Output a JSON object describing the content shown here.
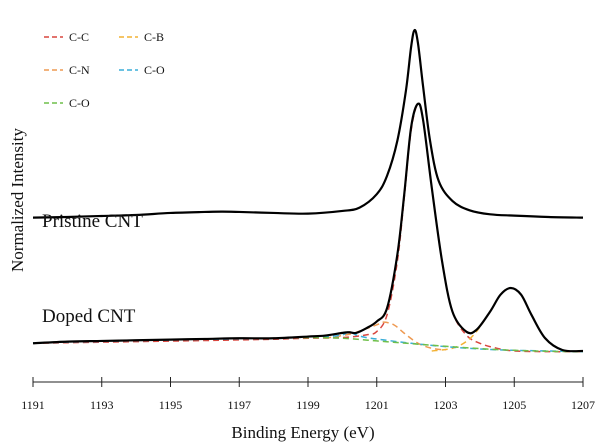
{
  "chart_data": {
    "type": "line",
    "xlabel": "Binding Energy (eV)",
    "ylabel": "Normalized Intensity",
    "xlim": [
      1191,
      1207
    ],
    "x_ticks": [
      "1191",
      "1193",
      "1195",
      "1197",
      "1199",
      "1201",
      "1203",
      "1205",
      "1207"
    ],
    "y_ticks_shown": false,
    "grid": false,
    "legend": {
      "placement": "top-left",
      "columns": 2,
      "entries": [
        {
          "name": "C-C",
          "color": "#d9473f"
        },
        {
          "name": "C-B",
          "color": "#f2b233"
        },
        {
          "name": "C-N",
          "color": "#ee9a52"
        },
        {
          "name": "C-O",
          "color": "#3aaed8"
        },
        {
          "name": "C-O",
          "color": "#6fbf4a"
        }
      ]
    },
    "annotations": [
      "Pristine CNT",
      "Doped CNT"
    ],
    "series": [
      {
        "name": "Pristine CNT",
        "style": "solid",
        "color": "#000000",
        "x": [
          1191,
          1192,
          1193,
          1194,
          1195,
          1196,
          1196.5,
          1197,
          1198,
          1199,
          1200,
          1200.5,
          1201,
          1201.3,
          1201.6,
          1201.85,
          1202.0,
          1202.1,
          1202.2,
          1202.35,
          1202.55,
          1202.8,
          1203.2,
          1203.7,
          1204.3,
          1205,
          1206,
          1207
        ],
        "y": [
          0.41,
          0.412,
          0.415,
          0.418,
          0.424,
          0.427,
          0.428,
          0.427,
          0.424,
          0.422,
          0.43,
          0.44,
          0.48,
          0.535,
          0.64,
          0.79,
          0.92,
          0.97,
          0.93,
          0.8,
          0.64,
          0.52,
          0.46,
          0.432,
          0.42,
          0.416,
          0.412,
          0.41
        ]
      },
      {
        "name": "Doped CNT",
        "style": "solid",
        "color": "#000000",
        "x": [
          1191,
          1192,
          1193,
          1194,
          1195,
          1196,
          1197,
          1198,
          1199,
          1199.5,
          1200,
          1200.2,
          1200.4,
          1200.7,
          1201,
          1201.3,
          1201.6,
          1201.8,
          1202.0,
          1202.2,
          1202.35,
          1202.6,
          1202.9,
          1203.2,
          1203.6,
          1203.9,
          1204.3,
          1204.6,
          1204.9,
          1205.2,
          1205.5,
          1205.9,
          1206.4,
          1207
        ],
        "y": [
          0.035,
          0.04,
          0.042,
          0.044,
          0.046,
          0.048,
          0.05,
          0.05,
          0.055,
          0.058,
          0.066,
          0.068,
          0.066,
          0.08,
          0.1,
          0.14,
          0.3,
          0.48,
          0.68,
          0.75,
          0.7,
          0.5,
          0.28,
          0.13,
          0.07,
          0.075,
          0.13,
          0.18,
          0.2,
          0.18,
          0.12,
          0.05,
          0.015,
          0.012
        ]
      },
      {
        "name": "C-C",
        "style": "dashed",
        "color": "#d9473f",
        "x": [
          1191,
          1197,
          1199,
          1200,
          1200.7,
          1201,
          1201.3,
          1201.6,
          1201.8,
          1202.0,
          1202.2,
          1202.35,
          1202.6,
          1202.9,
          1203.2,
          1203.6,
          1204,
          1204.5,
          1205,
          1206,
          1207
        ],
        "y": [
          0.035,
          0.045,
          0.05,
          0.052,
          0.06,
          0.07,
          0.12,
          0.28,
          0.47,
          0.67,
          0.75,
          0.7,
          0.5,
          0.28,
          0.13,
          0.06,
          0.035,
          0.02,
          0.012,
          0.01,
          0.01
        ]
      },
      {
        "name": "C-B",
        "style": "dashed",
        "color": "#f2b233",
        "x": [
          1202.6,
          1203.2,
          1203.6,
          1203.9,
          1204.3,
          1204.6,
          1204.9,
          1205.2,
          1205.5,
          1205.9,
          1206.4,
          1207
        ],
        "y": [
          0.012,
          0.02,
          0.04,
          0.07,
          0.13,
          0.18,
          0.2,
          0.18,
          0.12,
          0.05,
          0.015,
          0.012
        ]
      },
      {
        "name": "C-N",
        "style": "dashed",
        "color": "#ee9a52",
        "x": [
          1199.5,
          1200.2,
          1200.6,
          1201,
          1201.2,
          1201.5,
          1201.8,
          1202.2,
          1202.6,
          1203
        ],
        "y": [
          0.05,
          0.062,
          0.075,
          0.09,
          0.098,
          0.09,
          0.065,
          0.035,
          0.02,
          0.015
        ]
      },
      {
        "name": "C-O",
        "style": "dashed",
        "color": "#3aaed8",
        "x": [
          1191,
          1195,
          1198,
          1199.5,
          1200,
          1200.2,
          1200.4,
          1200.7,
          1201.2,
          1202,
          1203,
          1204,
          1205,
          1206,
          1207
        ],
        "y": [
          0.036,
          0.045,
          0.05,
          0.055,
          0.06,
          0.07,
          0.06,
          0.052,
          0.045,
          0.035,
          0.025,
          0.018,
          0.014,
          0.012,
          0.01
        ]
      },
      {
        "name": "C-O",
        "style": "dashed",
        "color": "#6fbf4a",
        "x": [
          1191,
          1192,
          1193,
          1194,
          1195,
          1196,
          1197,
          1198,
          1199,
          1200,
          1201,
          1202,
          1203,
          1204,
          1205,
          1206,
          1207
        ],
        "y": [
          0.035,
          0.04,
          0.042,
          0.044,
          0.046,
          0.048,
          0.05,
          0.05,
          0.052,
          0.05,
          0.042,
          0.034,
          0.026,
          0.019,
          0.014,
          0.011,
          0.01
        ]
      }
    ]
  }
}
